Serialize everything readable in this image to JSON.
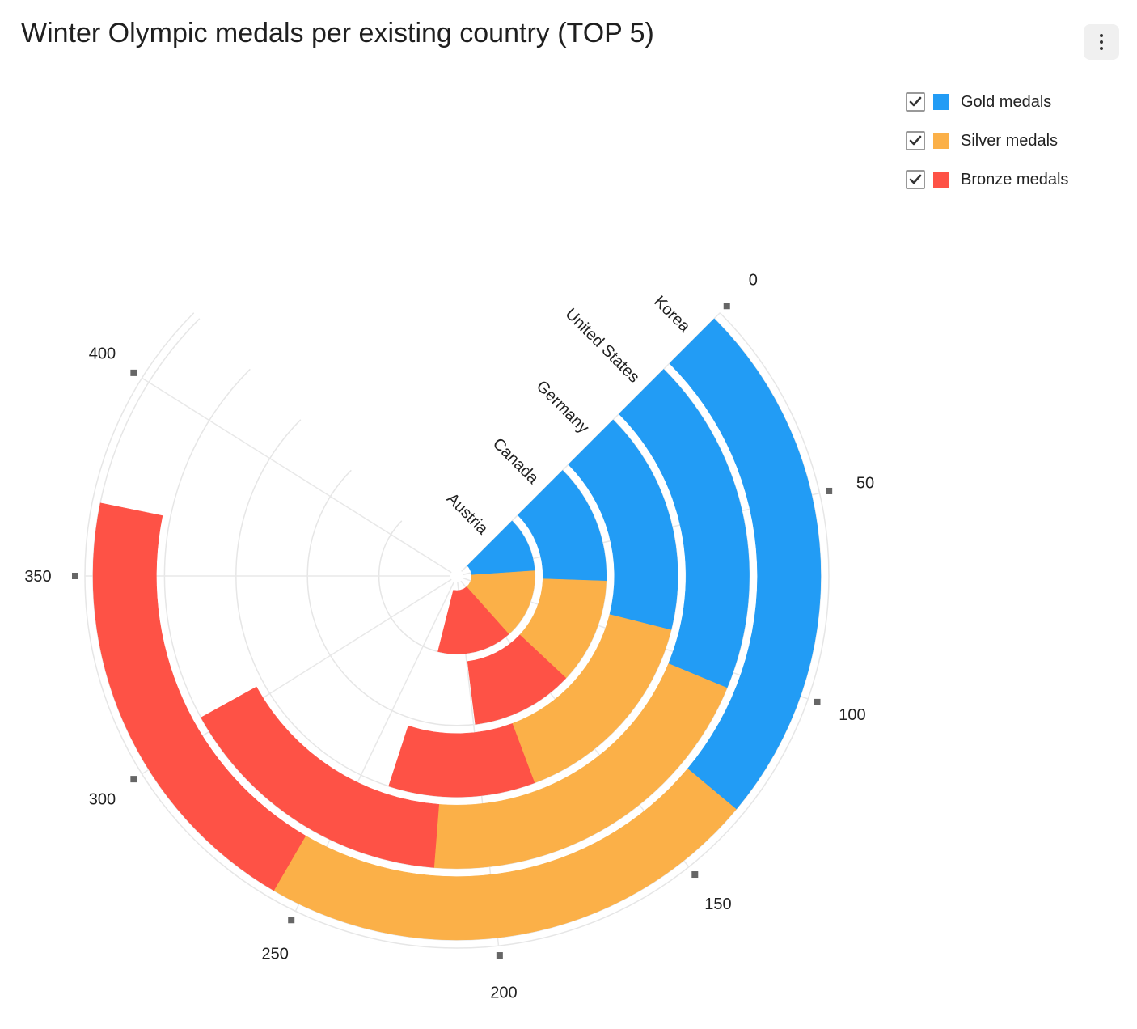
{
  "header": {
    "title": "Winter Olympic medals per existing country (TOP 5)",
    "menu_icon": "vertical-ellipsis-icon"
  },
  "legend": {
    "items": [
      {
        "label": "Gold medals",
        "color": "#229cf5",
        "checked": true
      },
      {
        "label": "Silver medals",
        "color": "#fbb048",
        "checked": true
      },
      {
        "label": "Bronze medals",
        "color": "#fe5246",
        "checked": true
      }
    ]
  },
  "chart_data": {
    "type": "bar",
    "subtype": "polar-stacked-radial-bar",
    "title": "Winter Olympic medals per existing country (TOP 5)",
    "categories": [
      "Korea",
      "United States",
      "Germany",
      "Canada",
      "Austria"
    ],
    "series": [
      {
        "name": "Gold medals",
        "color": "#229cf5",
        "values": [
          132,
          105,
          92,
          73,
          64
        ]
      },
      {
        "name": "Silver medals",
        "color": "#fbb048",
        "values": [
          125,
          112,
          86,
          64,
          81
        ]
      },
      {
        "name": "Bronze medals",
        "color": "#fe5246",
        "values": [
          111,
          88,
          60,
          62,
          87
        ]
      }
    ],
    "angle_axis": {
      "min": 0,
      "max": 420,
      "tick_labels": [
        "0",
        "50",
        "100",
        "150",
        "200",
        "250",
        "300",
        "350",
        "400"
      ]
    },
    "grid": true,
    "legend_position": "top-right"
  }
}
